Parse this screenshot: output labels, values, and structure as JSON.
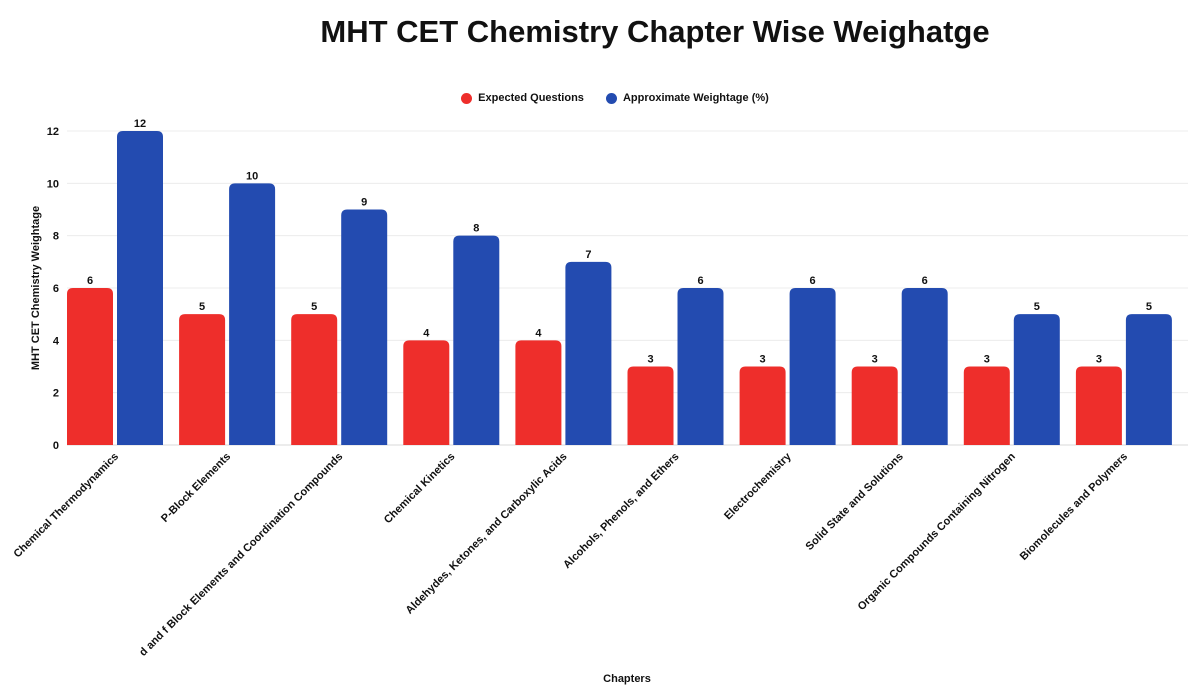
{
  "chart_data": {
    "type": "bar",
    "title": "MHT CET Chemistry Chapter Wise Weighatge",
    "xlabel": "Chapters",
    "ylabel": "MHT CET Chemistry Weightage",
    "ylim": [
      0,
      12
    ],
    "yticks": [
      0,
      2,
      4,
      6,
      8,
      10,
      12
    ],
    "grid": true,
    "legend_position": "top-center",
    "categories": [
      "Chemical Thermodynamics",
      "P-Block Elements",
      "d and f Block Elements and Coordination Compounds",
      "Chemical Kinetics",
      "Aldehydes, Ketones, and Carboxylic Acids",
      "Alcohols, Phenols, and Ethers",
      "Electrochemistry",
      "Solid State and Solutions",
      "Organic Compounds Containing Nitrogen",
      "Biomolecules and Polymers"
    ],
    "series": [
      {
        "name": "Expected Questions",
        "color": "#ee2e2b",
        "values": [
          6,
          5,
          5,
          4,
          4,
          3,
          3,
          3,
          3,
          3
        ]
      },
      {
        "name": "Approximate Weightage (%)",
        "color": "#234bb0",
        "values": [
          12,
          10,
          9,
          8,
          7,
          6,
          6,
          6,
          5,
          5
        ]
      }
    ]
  }
}
